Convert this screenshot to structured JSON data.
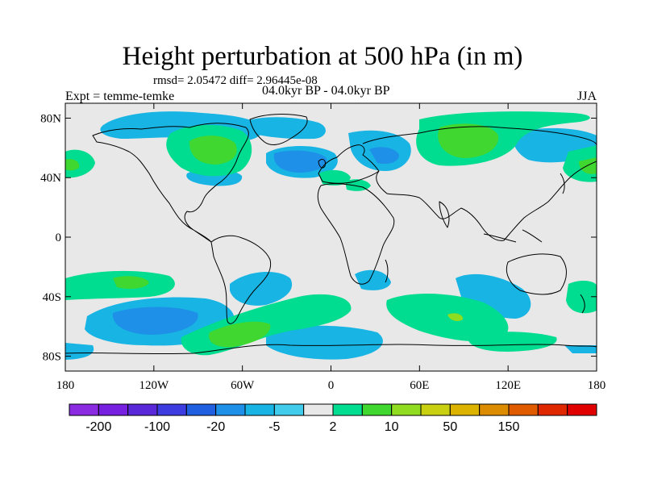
{
  "title": "Height perturbation at 500 hPa (in m)",
  "stats": "rmsd= 2.05472 diff= 2.96445e-08",
  "experiment": "Expt = temme-temke",
  "period": "04.0kyr BP - 04.0kyr BP",
  "season": "JJA",
  "map": {
    "projection": "cylindrical equidistant",
    "lon_range": [
      -180,
      180
    ],
    "lat_range": [
      -90,
      90
    ],
    "background_color": "#e8e8e8",
    "lat_ticks": [
      {
        "lat": 80,
        "label": "80N"
      },
      {
        "lat": 40,
        "label": "40N"
      },
      {
        "lat": 0,
        "label": "0"
      },
      {
        "lat": -40,
        "label": "40S"
      },
      {
        "lat": -80,
        "label": "80S"
      }
    ],
    "lon_ticks": [
      {
        "lon": -180,
        "label": "180"
      },
      {
        "lon": -120,
        "label": "120W"
      },
      {
        "lon": -60,
        "label": "60W"
      },
      {
        "lon": 0,
        "label": "0"
      },
      {
        "lon": 60,
        "label": "60E"
      },
      {
        "lon": 120,
        "label": "120E"
      },
      {
        "lon": 180,
        "label": "180"
      }
    ]
  },
  "colorbar": {
    "colors": [
      "#8a2be2",
      "#7820e0",
      "#5a28d8",
      "#3c3ce0",
      "#2060e0",
      "#1e90e8",
      "#18b4e4",
      "#40ccea",
      "#e8e8e8",
      "#00dc90",
      "#40d830",
      "#90dc20",
      "#c8d010",
      "#dcb400",
      "#dc8c00",
      "#e05a00",
      "#e02800",
      "#e00000"
    ],
    "labels": [
      {
        "after_box": 1,
        "text": "-200"
      },
      {
        "after_box": 3,
        "text": "-100"
      },
      {
        "after_box": 5,
        "text": "-20"
      },
      {
        "after_box": 7,
        "text": "-5"
      },
      {
        "after_box": 9,
        "text": "2"
      },
      {
        "after_box": 11,
        "text": "10"
      },
      {
        "after_box": 13,
        "text": "50"
      },
      {
        "after_box": 15,
        "text": "150"
      }
    ]
  }
}
